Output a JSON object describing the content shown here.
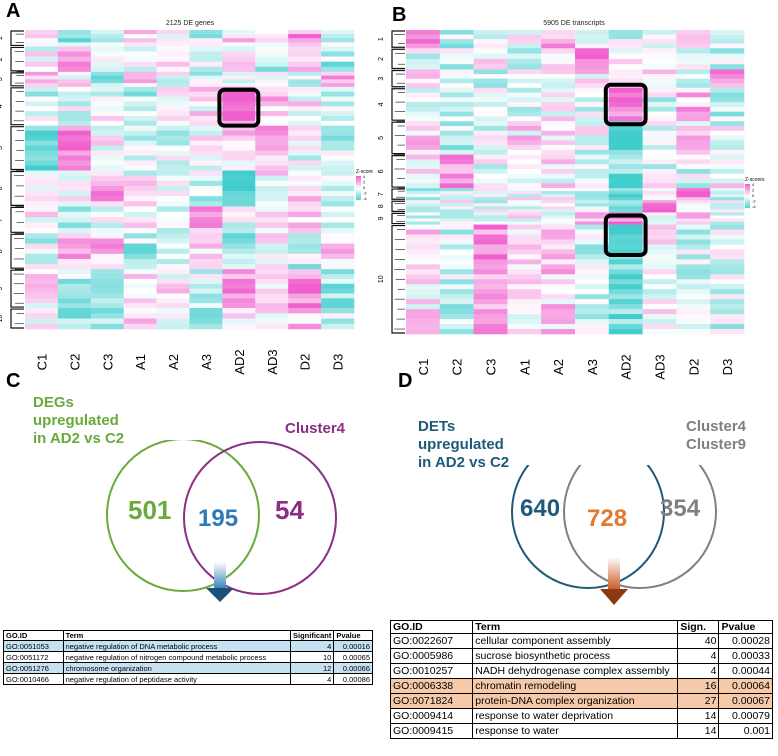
{
  "panelA": {
    "label": "A",
    "title": "2125 DE genes",
    "columns": [
      "C1",
      "C2",
      "C3",
      "A1",
      "A2",
      "A3",
      "AD2",
      "AD3",
      "D2",
      "D3"
    ],
    "clusters": [
      "1",
      "2",
      "3",
      "4",
      "5",
      "6",
      "7",
      "8",
      "9",
      "10"
    ],
    "legend_title": "Z-score",
    "legend_ticks": [
      "4",
      "2",
      "0",
      "-2",
      "-4"
    ]
  },
  "panelB": {
    "label": "B",
    "title": "5905 DE transcripts",
    "columns": [
      "C1",
      "C2",
      "C3",
      "A1",
      "A2",
      "A3",
      "AD2",
      "AD3",
      "D2",
      "D3"
    ],
    "clusters": [
      "1",
      "2",
      "3",
      "4",
      "5",
      "6",
      "7",
      "8",
      "9",
      "10"
    ],
    "legend_title": "Z-scores",
    "legend_ticks": [
      "4",
      "2",
      "0",
      "-2",
      "-4"
    ]
  },
  "panelC": {
    "label": "C",
    "left_label_lines": [
      "DEGs",
      "upregulated",
      "in AD2 vs C2"
    ],
    "right_label": "Cluster4",
    "left_only": "501",
    "overlap": "195",
    "right_only": "54",
    "colors": {
      "left": "#6aaa3a",
      "right": "#8a2f83",
      "overlap": "#2e7ab8"
    },
    "table": {
      "headers": [
        "GO.ID",
        "Term",
        "Significant",
        "Pvalue"
      ],
      "rows": [
        {
          "id": "GO:0051053",
          "term": "negative regulation of DNA metabolic process",
          "sig": "4",
          "p": "0.00016",
          "hl": true
        },
        {
          "id": "GO:0051172",
          "term": "negative regulation of nitrogen compound metabolic process",
          "sig": "10",
          "p": "0.00065",
          "hl": false
        },
        {
          "id": "GO:0051276",
          "term": "chromosome organization",
          "sig": "12",
          "p": "0.00066",
          "hl": true
        },
        {
          "id": "GO:0010466",
          "term": "negative regulation of peptidase activity",
          "sig": "4",
          "p": "0.00086",
          "hl": false
        }
      ]
    }
  },
  "panelD": {
    "label": "D",
    "left_label_lines": [
      "DETs",
      "upregulated",
      "in AD2 vs C2"
    ],
    "right_label_lines": [
      "Cluster4",
      "Cluster9"
    ],
    "left_only": "640",
    "overlap": "728",
    "right_only": "354",
    "colors": {
      "left": "#1f5a7a",
      "right": "#808080",
      "overlap": "#e07a2e"
    },
    "table": {
      "headers": [
        "GO.ID",
        "Term",
        "Sign.",
        "Pvalue"
      ],
      "rows": [
        {
          "id": "GO:0022607",
          "term": "cellular component assembly",
          "sig": "40",
          "p": "0.00028",
          "hl": false
        },
        {
          "id": "GO:0005986",
          "term": "sucrose biosynthetic process",
          "sig": "4",
          "p": "0.00033",
          "hl": false
        },
        {
          "id": "GO:0010257",
          "term": "NADH dehydrogenase complex assembly",
          "sig": "4",
          "p": "0.00044",
          "hl": false
        },
        {
          "id": "GO:0006338",
          "term": "chromatin remodeling",
          "sig": "16",
          "p": "0.00064",
          "hl": true
        },
        {
          "id": "GO:0071824",
          "term": "protein-DNA complex organization",
          "sig": "27",
          "p": "0.00067",
          "hl": true
        },
        {
          "id": "GO:0009414",
          "term": "response to water deprivation",
          "sig": "14",
          "p": "0.00079",
          "hl": false
        },
        {
          "id": "GO:0009415",
          "term": "response to water",
          "sig": "14",
          "p": "0.001",
          "hl": false
        }
      ]
    }
  }
}
